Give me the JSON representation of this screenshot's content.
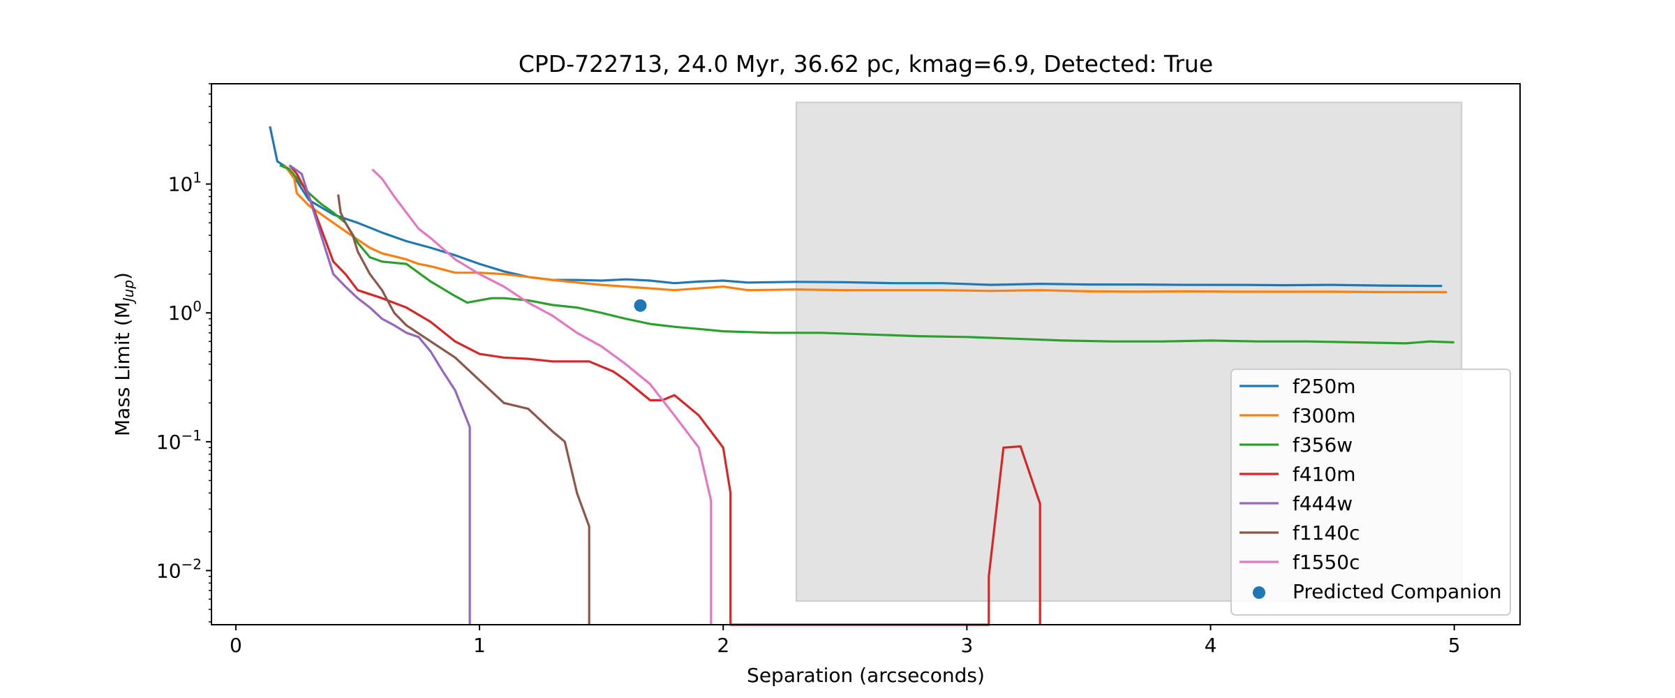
{
  "chart_data": {
    "type": "line",
    "title": "CPD-722713, 24.0 Myr, 36.62 pc, kmag=6.9, Detected: True",
    "xlabel": "Separation (arcseconds)",
    "ylabel": "Mass Limit (M",
    "ylabel_sub": "Jup",
    "ylabel_close": ")",
    "xlim": [
      -0.1,
      5.27
    ],
    "ylim": [
      0.0038,
      60
    ],
    "yscale": "log",
    "grid": false,
    "legend_position": "lower right",
    "x_ticks": [
      {
        "value": 0,
        "label": "0"
      },
      {
        "value": 1,
        "label": "1"
      },
      {
        "value": 2,
        "label": "2"
      },
      {
        "value": 3,
        "label": "3"
      },
      {
        "value": 4,
        "label": "4"
      },
      {
        "value": 5,
        "label": "5"
      }
    ],
    "y_ticks": [
      {
        "value": 10,
        "base": "10",
        "exp": "1"
      },
      {
        "value": 1,
        "base": "10",
        "exp": "0"
      },
      {
        "value": 0.1,
        "base": "10",
        "exp": "−1"
      },
      {
        "value": 0.01,
        "base": "10",
        "exp": "−2"
      }
    ],
    "shaded_region": {
      "x": [
        2.3,
        5.03
      ],
      "y": [
        0.0058,
        43
      ],
      "color": "#e3e3e3"
    },
    "series": [
      {
        "name": "f250m",
        "color": "#1f77b4",
        "x": [
          0.14,
          0.17,
          0.22,
          0.3,
          0.4,
          0.5,
          0.6,
          0.7,
          0.8,
          0.9,
          1.0,
          1.1,
          1.2,
          1.3,
          1.4,
          1.5,
          1.6,
          1.7,
          1.8,
          1.9,
          2.0,
          2.1,
          2.3,
          2.5,
          2.7,
          2.9,
          3.1,
          3.3,
          3.5,
          3.7,
          3.9,
          4.1,
          4.3,
          4.5,
          4.7,
          4.9,
          4.95
        ],
        "y": [
          28,
          15,
          13,
          7.5,
          5.8,
          5.0,
          4.2,
          3.6,
          3.2,
          2.8,
          2.4,
          2.1,
          1.9,
          1.8,
          1.8,
          1.78,
          1.82,
          1.78,
          1.7,
          1.75,
          1.78,
          1.72,
          1.74,
          1.73,
          1.7,
          1.7,
          1.65,
          1.68,
          1.66,
          1.66,
          1.65,
          1.65,
          1.64,
          1.65,
          1.63,
          1.62,
          1.62
        ]
      },
      {
        "name": "f300m",
        "color": "#ff7f0e",
        "x": [
          0.2,
          0.24,
          0.25,
          0.3,
          0.4,
          0.5,
          0.55,
          0.6,
          0.7,
          0.75,
          0.8,
          0.9,
          1.0,
          1.1,
          1.2,
          1.3,
          1.4,
          1.5,
          1.6,
          1.7,
          1.8,
          1.9,
          2.0,
          2.1,
          2.3,
          2.5,
          2.7,
          2.9,
          3.1,
          3.3,
          3.5,
          3.7,
          3.9,
          4.1,
          4.3,
          4.5,
          4.7,
          4.9,
          4.97
        ],
        "y": [
          14,
          11,
          8.5,
          6.8,
          5.0,
          3.7,
          3.2,
          2.9,
          2.6,
          2.4,
          2.3,
          2.05,
          2.05,
          2.0,
          1.9,
          1.8,
          1.72,
          1.65,
          1.6,
          1.55,
          1.5,
          1.55,
          1.6,
          1.5,
          1.52,
          1.5,
          1.5,
          1.5,
          1.48,
          1.5,
          1.47,
          1.46,
          1.47,
          1.46,
          1.46,
          1.46,
          1.45,
          1.45,
          1.45
        ]
      },
      {
        "name": "f356w",
        "color": "#2ca02c",
        "x": [
          0.18,
          0.22,
          0.27,
          0.3,
          0.35,
          0.4,
          0.45,
          0.5,
          0.55,
          0.6,
          0.7,
          0.8,
          0.9,
          0.95,
          1.0,
          1.05,
          1.1,
          1.2,
          1.3,
          1.4,
          1.5,
          1.6,
          1.7,
          1.8,
          1.9,
          2.0,
          2.2,
          2.4,
          2.6,
          2.8,
          3.0,
          3.2,
          3.4,
          3.6,
          3.8,
          4.0,
          4.2,
          4.4,
          4.6,
          4.8,
          4.9,
          5.0
        ],
        "y": [
          14,
          13,
          10,
          8.5,
          7.0,
          6.0,
          5.0,
          3.5,
          2.7,
          2.5,
          2.4,
          1.75,
          1.35,
          1.2,
          1.25,
          1.3,
          1.3,
          1.25,
          1.15,
          1.1,
          1.0,
          0.9,
          0.82,
          0.78,
          0.75,
          0.72,
          0.7,
          0.7,
          0.68,
          0.66,
          0.65,
          0.63,
          0.61,
          0.6,
          0.6,
          0.61,
          0.6,
          0.6,
          0.59,
          0.58,
          0.6,
          0.59
        ]
      },
      {
        "name": "f410m",
        "color": "#d62728",
        "x": [
          0.22,
          0.25,
          0.3,
          0.35,
          0.4,
          0.45,
          0.5,
          0.6,
          0.7,
          0.8,
          0.9,
          1.0,
          1.1,
          1.2,
          1.3,
          1.4,
          1.45,
          1.55,
          1.6,
          1.7,
          1.75,
          1.8,
          1.9,
          1.95,
          2.0,
          2.03,
          2.03,
          3.09,
          3.09,
          3.15,
          3.22,
          3.3,
          3.3
        ],
        "y": [
          14,
          12,
          8.0,
          4.5,
          2.5,
          2.0,
          1.5,
          1.3,
          1.1,
          0.85,
          0.6,
          0.48,
          0.45,
          0.44,
          0.42,
          0.42,
          0.42,
          0.35,
          0.3,
          0.21,
          0.21,
          0.23,
          0.16,
          0.12,
          0.09,
          0.04,
          0.0038,
          0.0038,
          0.009,
          0.09,
          0.092,
          0.033,
          0.0038
        ]
      },
      {
        "name": "f444w",
        "color": "#9467bd",
        "x": [
          0.22,
          0.27,
          0.3,
          0.35,
          0.4,
          0.45,
          0.5,
          0.55,
          0.6,
          0.65,
          0.7,
          0.75,
          0.8,
          0.85,
          0.9,
          0.96,
          0.96
        ],
        "y": [
          14,
          12,
          8.0,
          4.0,
          2.0,
          1.6,
          1.3,
          1.1,
          0.9,
          0.8,
          0.7,
          0.65,
          0.5,
          0.35,
          0.25,
          0.13,
          0.0038
        ]
      },
      {
        "name": "f1140c",
        "color": "#8c564b",
        "x": [
          0.42,
          0.43,
          0.45,
          0.48,
          0.5,
          0.55,
          0.6,
          0.65,
          0.7,
          0.8,
          0.9,
          1.0,
          1.1,
          1.2,
          1.3,
          1.35,
          1.4,
          1.45,
          1.45
        ],
        "y": [
          8.3,
          6.0,
          5.0,
          4.0,
          3.0,
          2.0,
          1.5,
          1.0,
          0.8,
          0.6,
          0.45,
          0.3,
          0.2,
          0.18,
          0.12,
          0.1,
          0.04,
          0.022,
          0.0038
        ]
      },
      {
        "name": "f1550c",
        "color": "#e377c2",
        "x": [
          0.56,
          0.6,
          0.65,
          0.7,
          0.75,
          0.8,
          0.9,
          1.0,
          1.1,
          1.2,
          1.3,
          1.4,
          1.5,
          1.6,
          1.7,
          1.8,
          1.9,
          1.95,
          1.95
        ],
        "y": [
          13,
          11,
          8.0,
          6.0,
          4.5,
          3.8,
          2.6,
          2.0,
          1.6,
          1.2,
          0.95,
          0.7,
          0.55,
          0.4,
          0.28,
          0.16,
          0.09,
          0.035,
          0.0038
        ]
      }
    ],
    "predicted_companion": {
      "name": "Predicted Companion",
      "color": "#1f77b4",
      "x": 1.66,
      "y": 1.14
    }
  }
}
